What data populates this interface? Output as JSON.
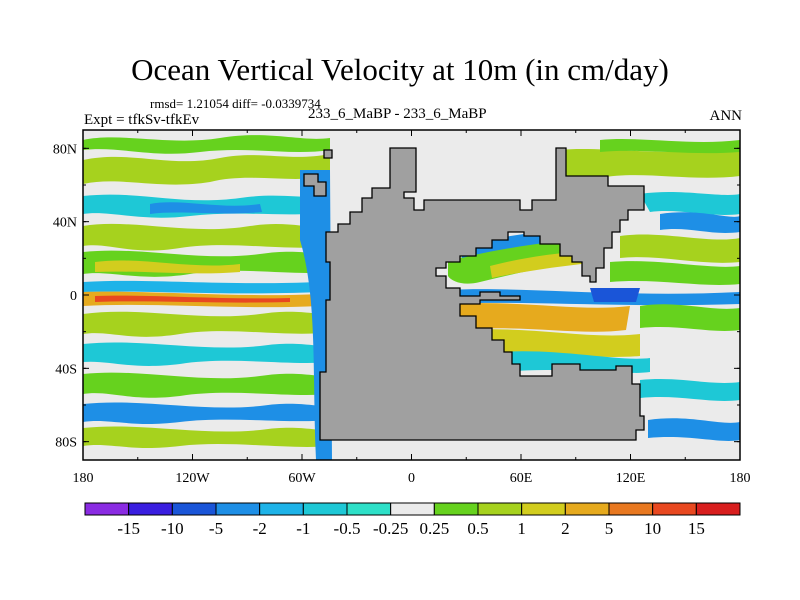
{
  "chart_data": {
    "type": "heatmap",
    "title": "Ocean Vertical Velocity at 10m (in cm/day)",
    "stats_line": "rmsd= 1.21054 diff= -0.0339734",
    "experiment_label": "Expt = tfkSv-tfkEv",
    "case_label": "233_6_MaBP - 233_6_MaBP",
    "season_label": "ANN",
    "x_ticks": [
      {
        "value": -180,
        "label": "180"
      },
      {
        "value": -120,
        "label": "120W"
      },
      {
        "value": -60,
        "label": "60W"
      },
      {
        "value": 0,
        "label": "0"
      },
      {
        "value": 60,
        "label": "60E"
      },
      {
        "value": 120,
        "label": "120E"
      },
      {
        "value": 180,
        "label": "180"
      }
    ],
    "y_ticks": [
      {
        "value": 80,
        "label": "80N"
      },
      {
        "value": 40,
        "label": "40N"
      },
      {
        "value": 0,
        "label": "0"
      },
      {
        "value": -40,
        "label": "40S"
      },
      {
        "value": -80,
        "label": "80S"
      }
    ],
    "xlim": [
      -180,
      180
    ],
    "ylim": [
      -90,
      90
    ],
    "land_color": "#a0a0a0",
    "colorbar": {
      "levels": [
        "-15",
        "-10",
        "-5",
        "-2",
        "-1",
        "-0.5",
        "-0.25",
        "0.25",
        "0.5",
        "1",
        "2",
        "5",
        "10",
        "15"
      ],
      "colors": [
        "#8a2be2",
        "#3a1ee0",
        "#1a55d8",
        "#1e8fe6",
        "#1eb3e8",
        "#1ec8d6",
        "#2ee0c8",
        "#ebebeb",
        "#66d21e",
        "#a6d21e",
        "#d2cd1e",
        "#e6aa1e",
        "#e87820",
        "#e84820",
        "#d81e1e"
      ]
    },
    "features": [
      {
        "name": "equatorial upwelling band",
        "lon_range": [
          -180,
          -55
        ],
        "lat": 0,
        "level": "0.5"
      },
      {
        "name": "equatorial strong band",
        "lon_range": [
          -180,
          -70
        ],
        "lat": -2,
        "level": "5"
      },
      {
        "name": "equatorial downwelling strip",
        "lon_range": [
          -175,
          -70
        ],
        "lat": 4,
        "level": "-1"
      },
      {
        "name": "eastern equatorial upwelling",
        "lon_range": [
          25,
          135
        ],
        "lat": -5,
        "level": "2"
      },
      {
        "name": "eastern equatorial downwelling",
        "lon_range": [
          20,
          130
        ],
        "lat": 0,
        "level": "-5"
      }
    ]
  }
}
